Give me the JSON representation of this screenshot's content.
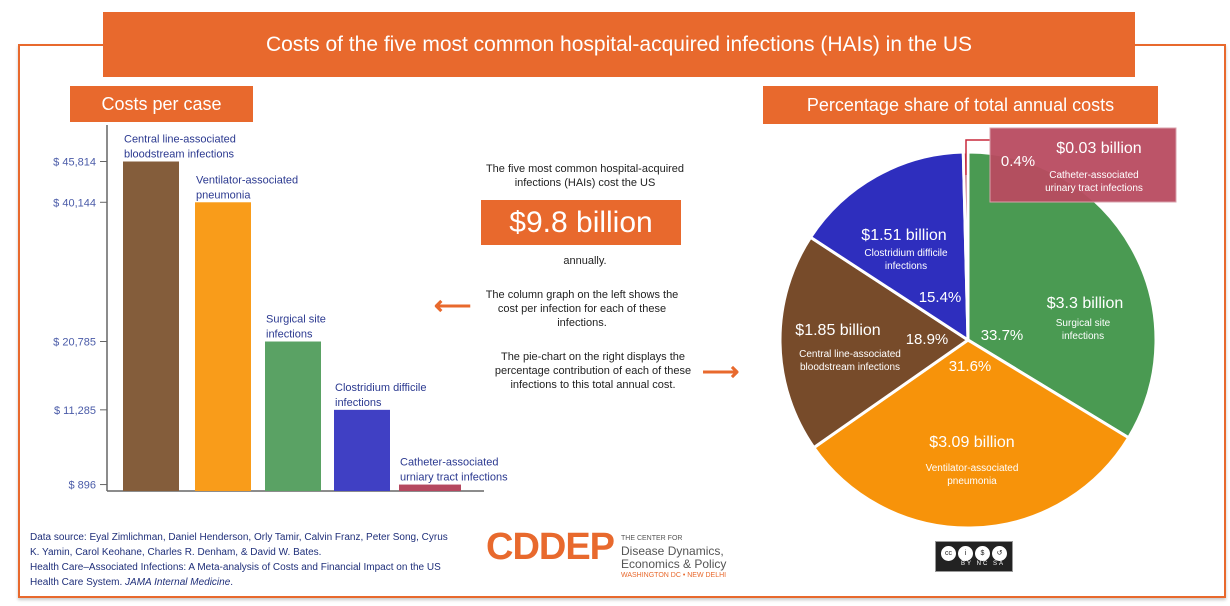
{
  "title": "Costs of the five most common hospital-acquired infections (HAIs) in the US",
  "left_heading": "Costs per case",
  "right_heading": "Percentage share of total annual costs",
  "center": {
    "intro": "The five most common hospital-acquired infections (HAIs) cost the US",
    "total": "$9.8 billion",
    "annually": "annually.",
    "column_note": "The column graph on the left shows the cost per infection for each of these infections.",
    "pie_note": "The pie-chart on the right displays the percentage contribution of each of these infections to this total annual cost.",
    "left_arrow_icon": "arrow-left-icon",
    "right_arrow_icon": "arrow-right-icon"
  },
  "footer": {
    "source_line1": "Data source: Eyal Zimlichman, Daniel Henderson, Orly Tamir, Calvin Franz, Peter Song, Cyrus K. Yamin, Carol Keohane, Charles R. Denham, & David W. Bates.",
    "source_line2": "Health Care–Associated Infections: A Meta-analysis of Costs and Financial Impact on the US Health Care System.",
    "journal": "JAMA Internal Medicine",
    "logo": "CDDEP",
    "logo_small": "THE CENTER FOR",
    "logo_name1": "Disease Dynamics,",
    "logo_name2": "Economics & Policy",
    "logo_location": "WASHINGTON DC • NEW DELHI",
    "license": "BY NC SA"
  },
  "chart_data": [
    {
      "type": "bar",
      "title": "Costs per case",
      "categories": [
        [
          "Central line-associated",
          "bloodstream infections"
        ],
        [
          "Ventilator-associated",
          "pneumonia"
        ],
        [
          "Surgical site",
          "infections"
        ],
        [
          "Clostridium difficile",
          "infections"
        ],
        [
          "Catheter-associated",
          "urniary tract infections"
        ]
      ],
      "values": [
        45814,
        40144,
        20785,
        11285,
        896
      ],
      "tick_labels": [
        "$ 45,814",
        "$ 40,144",
        "$ 20,785",
        "$ 11,285",
        "$ 896"
      ],
      "colors": [
        "#845D3B",
        "#F99C1A",
        "#5AA264",
        "#4040C4",
        "#B5485F"
      ],
      "ylim": [
        0,
        45814
      ],
      "grid": false
    },
    {
      "type": "pie",
      "title": "Percentage share of total annual costs",
      "slices": [
        {
          "name": [
            "Surgical site",
            "infections"
          ],
          "value_label": "$3.3 billion",
          "value": 3.3,
          "percent": 33.7,
          "percent_label": "33.7%",
          "color": "#4A9A52"
        },
        {
          "name": [
            "Ventilator-associated",
            "pneumonia"
          ],
          "value_label": "$3.09 billion",
          "value": 3.09,
          "percent": 31.6,
          "percent_label": "31.6%",
          "color": "#F7930A"
        },
        {
          "name": [
            "Central line-associated",
            "bloodstream infections"
          ],
          "value_label": "$1.85 billion",
          "value": 1.85,
          "percent": 18.9,
          "percent_label": "18.9%",
          "color": "#774B2A"
        },
        {
          "name": [
            "Clostridium difficile",
            "infections"
          ],
          "value_label": "$1.51 billion",
          "value": 1.51,
          "percent": 15.4,
          "percent_label": "15.4%",
          "color": "#2E2EBE"
        },
        {
          "name": [
            "Catheter-associated",
            "urinary tract infections"
          ],
          "value_label": "$0.03 billion",
          "value": 0.03,
          "percent": 0.4,
          "percent_label": "0.4%",
          "color": "#B84B60"
        }
      ]
    }
  ]
}
